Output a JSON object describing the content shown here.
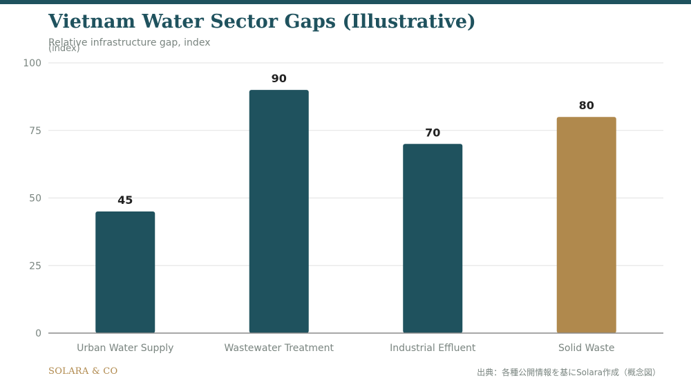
{
  "chart_data": {
    "type": "bar",
    "title": "Vietnam Water Sector Gaps (Illustrative)",
    "subtitle": "Relative infrastructure gap, index",
    "ylabel": "(index)",
    "xlabel": "",
    "categories": [
      "Urban Water Supply",
      "Wastewater Treatment",
      "Industrial Effluent",
      "Solid Waste"
    ],
    "values": [
      45,
      90,
      70,
      80
    ],
    "bar_colors": [
      "#1f525e",
      "#1f525e",
      "#1f525e",
      "#b0894d"
    ],
    "ylim": [
      0,
      100
    ],
    "yticks": [
      0,
      25,
      50,
      75,
      100
    ],
    "grid": true,
    "legend": "none"
  },
  "footer": {
    "brand": "SOLARA & CO",
    "source": "出典：各種公開情報を基にSolara作成（概念図）"
  },
  "colors": {
    "primary": "#1f525e",
    "accent": "#b0894d",
    "grid": "#e2e2e2",
    "axis_text": "#7a8580",
    "value_text": "#222222"
  }
}
